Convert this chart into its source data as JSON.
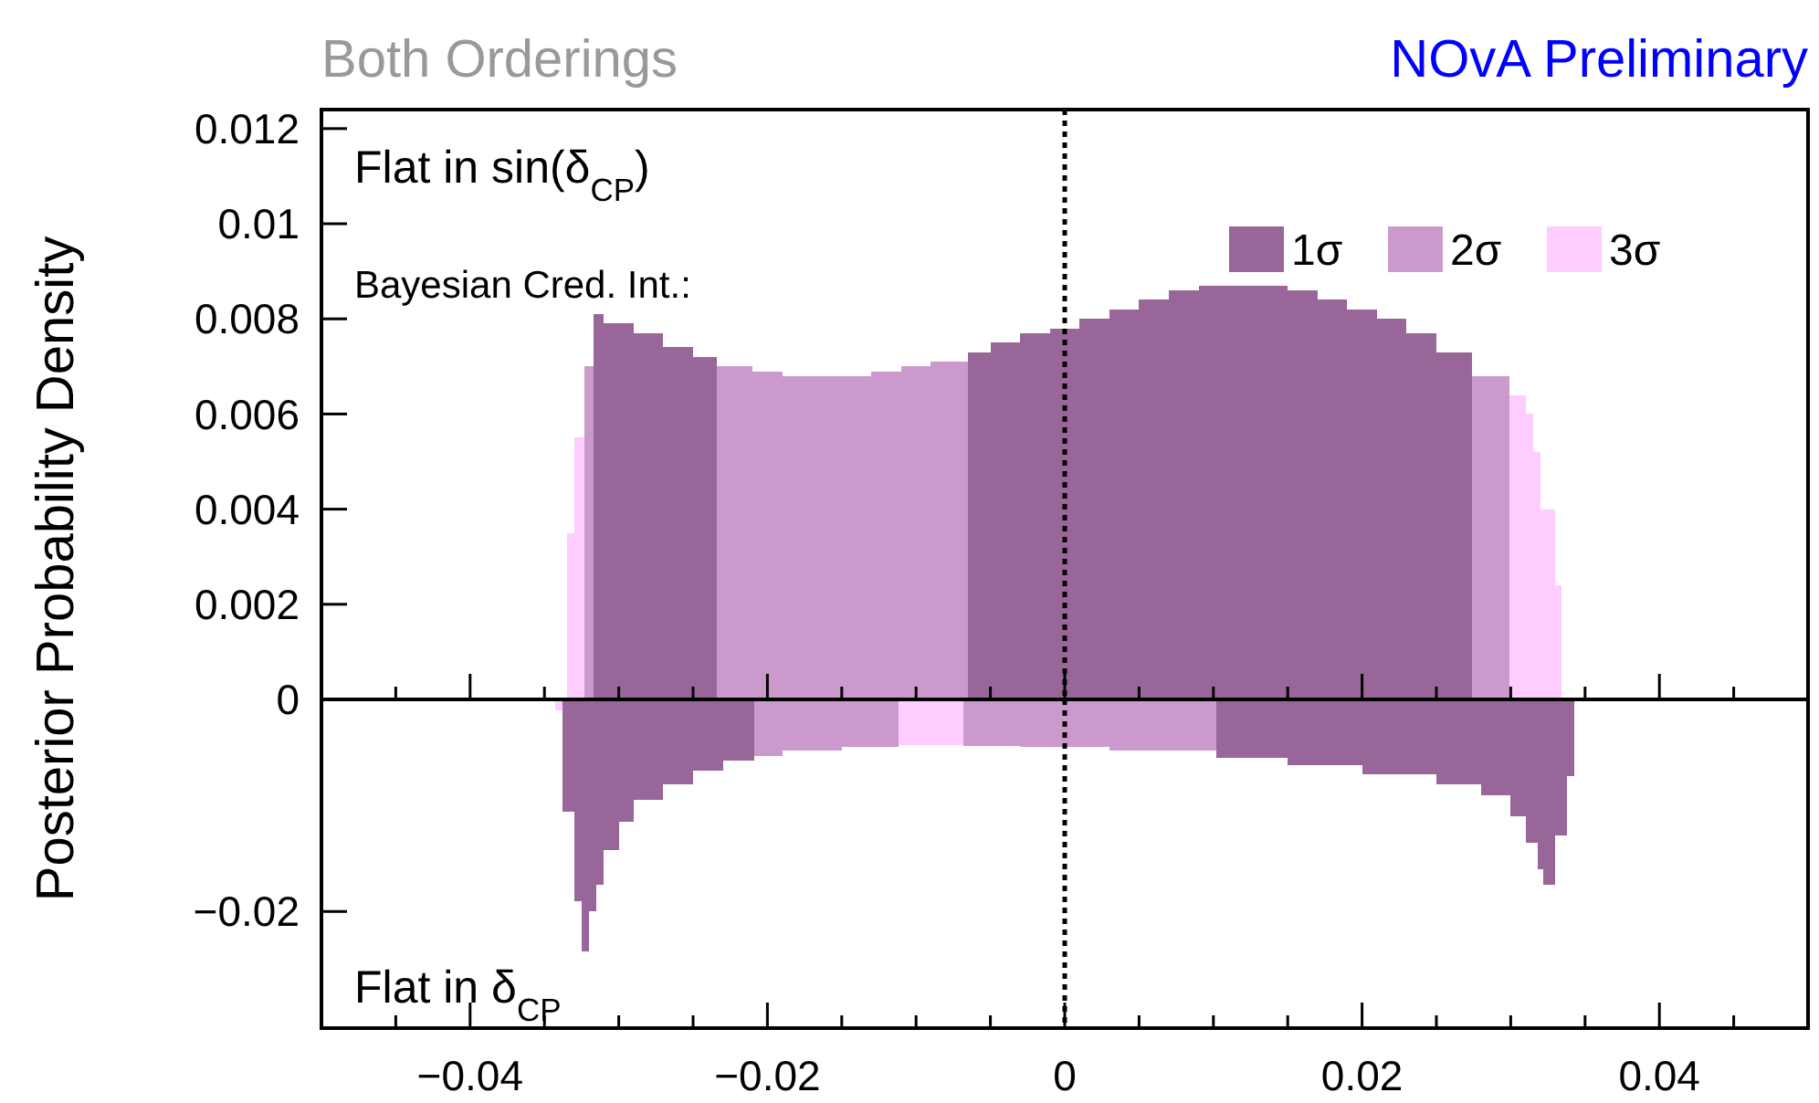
{
  "chart_data": [
    {
      "type": "histogram",
      "title": "Both Orderings",
      "subtitle": "NOvA Preliminary",
      "ylabel": "Posterior Probability Density",
      "legend_title": "Bayesian Cred. Int.:",
      "annotations": [
        "Flat in sin(δ$_{CP}$)"
      ],
      "bins": [
        -0.0335,
        -0.033,
        -0.0323,
        -0.0317,
        -0.031,
        -0.029,
        -0.027,
        -0.025,
        -0.0234,
        -0.021,
        -0.019,
        -0.017,
        -0.015,
        -0.013,
        -0.011,
        -0.009,
        -0.0065,
        -0.005,
        -0.003,
        -0.001,
        0.001,
        0.003,
        0.005,
        0.007,
        0.009,
        0.011,
        0.013,
        0.015,
        0.017,
        0.019,
        0.021,
        0.023,
        0.025,
        0.0274,
        0.0299,
        0.031,
        0.0315,
        0.032,
        0.033,
        0.0334
      ],
      "series": [
        {
          "name": "1σ",
          "color": "#996699",
          "values": [
            null,
            null,
            null,
            0.0081,
            0.0079,
            0.0077,
            0.0074,
            0.0072,
            null,
            null,
            null,
            null,
            null,
            null,
            null,
            null,
            0.0073,
            0.0075,
            0.0077,
            0.0078,
            0.008,
            0.0082,
            0.0084,
            0.0086,
            0.0087,
            0.0087,
            0.0087,
            0.0086,
            0.0084,
            0.0082,
            0.008,
            0.0077,
            0.0073,
            null,
            null,
            null,
            null,
            null,
            null
          ]
        },
        {
          "name": "2σ",
          "color": "#cc99cc",
          "values": [
            null,
            null,
            0.007,
            null,
            null,
            null,
            null,
            null,
            0.007,
            0.0069,
            0.0068,
            0.0068,
            0.0068,
            0.0069,
            0.007,
            0.0071,
            null,
            null,
            null,
            null,
            null,
            null,
            null,
            null,
            null,
            null,
            null,
            null,
            null,
            null,
            null,
            null,
            null,
            0.0068,
            null,
            null,
            null,
            null,
            null
          ]
        },
        {
          "name": "3σ",
          "color": "#ffccff",
          "values": [
            0.0035,
            0.0055,
            null,
            null,
            null,
            null,
            null,
            null,
            null,
            null,
            null,
            null,
            null,
            null,
            null,
            null,
            null,
            null,
            null,
            null,
            null,
            null,
            null,
            null,
            null,
            null,
            null,
            null,
            null,
            null,
            null,
            null,
            null,
            null,
            0.0064,
            0.006,
            0.0052,
            0.004,
            0.0024
          ]
        }
      ],
      "xlim": [
        -0.05,
        0.05
      ],
      "ylim": [
        0,
        0.0124
      ],
      "xticks": [
        {
          "value": -0.045,
          "label": null
        },
        {
          "value": -0.04,
          "label": null
        },
        {
          "value": -0.035,
          "label": null
        },
        {
          "value": -0.03,
          "label": null
        },
        {
          "value": -0.025,
          "label": null
        },
        {
          "value": -0.02,
          "label": null
        },
        {
          "value": -0.015,
          "label": null
        },
        {
          "value": -0.01,
          "label": null
        },
        {
          "value": -0.005,
          "label": null
        },
        {
          "value": 0,
          "label": null
        },
        {
          "value": 0.005,
          "label": null
        },
        {
          "value": 0.01,
          "label": null
        },
        {
          "value": 0.015,
          "label": null
        },
        {
          "value": 0.02,
          "label": null
        },
        {
          "value": 0.025,
          "label": null
        },
        {
          "value": 0.03,
          "label": null
        },
        {
          "value": 0.035,
          "label": null
        },
        {
          "value": 0.04,
          "label": null
        },
        {
          "value": 0.045,
          "label": null
        }
      ],
      "yticks": [
        {
          "value": 0,
          "label": null
        },
        0.002,
        0.004,
        0.006,
        0.008,
        0.01,
        0.012
      ],
      "tick_labels": "y",
      "ref_lines": [
        {
          "axis": "x",
          "value": 0,
          "line_style": "dotted"
        }
      ],
      "legend": "top right"
    },
    {
      "type": "histogram",
      "annotations": [
        "Flat in δ$_{CP}$"
      ],
      "bins": [
        -0.0343,
        -0.0338,
        -0.033,
        -0.0325,
        -0.032,
        -0.0315,
        -0.031,
        -0.03,
        -0.029,
        -0.027,
        -0.025,
        -0.023,
        -0.0209,
        -0.019,
        -0.015,
        -0.0112,
        -0.0068,
        -0.003,
        0.003,
        0.0102,
        0.015,
        0.02,
        0.025,
        0.028,
        0.03,
        0.031,
        0.0318,
        0.0322,
        0.033,
        0.0338,
        0.0343
      ],
      "series": [
        {
          "color": "#996699",
          "values": [
            null,
            -0.0106,
            -0.019,
            -0.0238,
            -0.02,
            -0.0175,
            -0.0142,
            -0.0115,
            -0.0095,
            -0.008,
            -0.0067,
            -0.0058,
            null,
            null,
            null,
            null,
            null,
            null,
            null,
            -0.0055,
            -0.0062,
            -0.0071,
            -0.008,
            -0.009,
            -0.011,
            -0.0135,
            -0.016,
            -0.0175,
            -0.0128,
            -0.0072
          ]
        },
        {
          "color": "#cc99cc",
          "values": [
            null,
            null,
            null,
            null,
            null,
            null,
            null,
            null,
            null,
            null,
            null,
            null,
            -0.0053,
            -0.0048,
            -0.0045,
            null,
            -0.0044,
            -0.0045,
            -0.0048,
            null,
            null,
            null,
            null,
            null,
            null,
            null,
            null,
            null,
            null,
            null
          ]
        },
        {
          "color": "#ffccff",
          "values": [
            -0.001,
            null,
            null,
            null,
            null,
            null,
            null,
            null,
            null,
            null,
            null,
            null,
            null,
            null,
            null,
            -0.0043,
            null,
            null,
            null,
            null,
            null,
            null,
            null,
            null,
            null,
            null,
            null,
            null,
            null,
            null
          ]
        }
      ],
      "xlim": [
        -0.05,
        0.05
      ],
      "ylim": [
        -0.031,
        0
      ],
      "xticks": [
        {
          "value": -0.045,
          "label": null
        },
        {
          "value": -0.04,
          "label": "−0.04"
        },
        {
          "value": -0.035,
          "label": null
        },
        {
          "value": -0.03,
          "label": null
        },
        {
          "value": -0.025,
          "label": null
        },
        {
          "value": -0.02,
          "label": "−0.02"
        },
        {
          "value": -0.015,
          "label": null
        },
        {
          "value": -0.01,
          "label": null
        },
        {
          "value": -0.005,
          "label": null
        },
        0,
        {
          "value": 0.005,
          "label": null
        },
        {
          "value": 0.01,
          "label": null
        },
        {
          "value": 0.015,
          "label": null
        },
        0.02,
        {
          "value": 0.025,
          "label": null
        },
        {
          "value": 0.03,
          "label": null
        },
        {
          "value": 0.035,
          "label": null
        },
        0.04,
        {
          "value": 0.045,
          "label": null
        }
      ],
      "yticks": [
        {
          "value": -0.02,
          "label": "−0.02"
        },
        0
      ],
      "ref_lines": [
        {
          "axis": "x",
          "value": 0,
          "line_style": "dotted"
        }
      ]
    }
  ]
}
